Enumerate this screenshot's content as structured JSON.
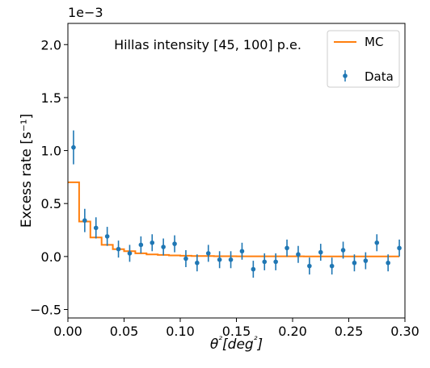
{
  "chart_data": {
    "type": "scatter",
    "title": "",
    "annotation": "Hillas intensity [45, 100] p.e.",
    "xlabel": "θ²[deg²]",
    "ylabel": "Excess rate [s⁻¹]",
    "y_offset_text": "1e−3",
    "xlim": [
      0.0,
      0.3
    ],
    "ylim": [
      -0.58,
      2.2
    ],
    "xticks": [
      0.0,
      0.05,
      0.1,
      0.15,
      0.2,
      0.25,
      0.3
    ],
    "xtick_labels": [
      "0.00",
      "0.05",
      "0.10",
      "0.15",
      "0.20",
      "0.25",
      "0.30"
    ],
    "yticks": [
      -0.5,
      0.0,
      0.5,
      1.0,
      1.5,
      2.0
    ],
    "ytick_labels": [
      "−0.5",
      "0.0",
      "0.5",
      "1.0",
      "1.5",
      "2.0"
    ],
    "grid": false,
    "legend": {
      "position": "top-right",
      "entries": [
        "MC",
        "Data"
      ]
    },
    "colors": {
      "mc": "#ff7f0e",
      "data": "#1f77b4"
    },
    "series": [
      {
        "name": "MC",
        "type": "step",
        "bin_edges": [
          0.0,
          0.005,
          0.01,
          0.02,
          0.03,
          0.04,
          0.05,
          0.06,
          0.07,
          0.08,
          0.09,
          0.1,
          0.11,
          0.12,
          0.13,
          0.14,
          0.15,
          0.16,
          0.17,
          0.18,
          0.19,
          0.2,
          0.21,
          0.22,
          0.23,
          0.24,
          0.25,
          0.26,
          0.27,
          0.28,
          0.29,
          0.295
        ],
        "values": [
          0.7,
          0.7,
          0.33,
          0.18,
          0.11,
          0.07,
          0.05,
          0.03,
          0.02,
          0.015,
          0.01,
          0.007,
          0.005,
          0.004,
          0.003,
          0.003,
          0.002,
          0.002,
          0.002,
          0.002,
          0.002,
          0.002,
          0.001,
          0.001,
          0.001,
          0.001,
          0.001,
          0.001,
          0.001,
          0.001,
          0.001
        ]
      },
      {
        "name": "Data",
        "type": "errorbar",
        "x": [
          0.005,
          0.015,
          0.025,
          0.035,
          0.045,
          0.055,
          0.065,
          0.075,
          0.085,
          0.095,
          0.105,
          0.115,
          0.125,
          0.135,
          0.145,
          0.155,
          0.165,
          0.175,
          0.185,
          0.195,
          0.205,
          0.215,
          0.225,
          0.235,
          0.245,
          0.255,
          0.265,
          0.275,
          0.285,
          0.295
        ],
        "y": [
          1.03,
          0.34,
          0.27,
          0.19,
          0.07,
          0.03,
          0.11,
          0.13,
          0.09,
          0.12,
          -0.02,
          -0.06,
          0.03,
          -0.03,
          -0.03,
          0.05,
          -0.12,
          -0.05,
          -0.05,
          0.08,
          0.02,
          -0.09,
          0.04,
          -0.09,
          0.06,
          -0.06,
          -0.04,
          0.13,
          -0.06,
          0.08
        ],
        "yerr": [
          0.16,
          0.11,
          0.1,
          0.09,
          0.08,
          0.08,
          0.08,
          0.08,
          0.08,
          0.08,
          0.08,
          0.08,
          0.08,
          0.08,
          0.08,
          0.08,
          0.08,
          0.08,
          0.08,
          0.08,
          0.08,
          0.08,
          0.08,
          0.08,
          0.08,
          0.08,
          0.08,
          0.08,
          0.08,
          0.08
        ]
      }
    ]
  }
}
